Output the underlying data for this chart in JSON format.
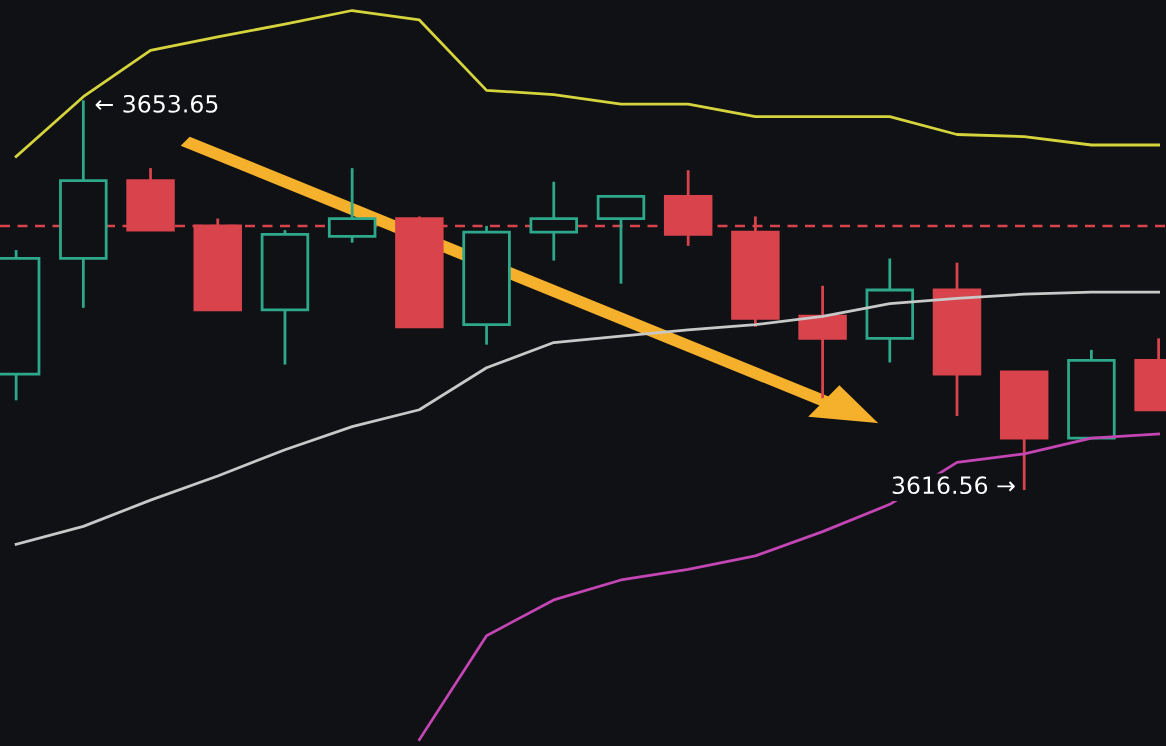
{
  "chart_data": {
    "type": "candlestick",
    "categories": [
      null,
      null,
      null,
      null,
      null,
      null,
      null,
      null,
      null,
      null,
      null,
      null,
      null,
      null,
      null,
      null,
      null,
      null
    ],
    "ohlc": [
      [
        3627.6,
        3639.4,
        3625.1,
        3638.6
      ],
      [
        3638.6,
        3653.65,
        3633.9,
        3646.0
      ],
      [
        3646.0,
        3647.2,
        3641.3,
        3641.3
      ],
      [
        3641.7,
        3642.4,
        3633.7,
        3633.7
      ],
      [
        3633.7,
        3641.3,
        3628.5,
        3640.9
      ],
      [
        3640.7,
        3647.2,
        3640.1,
        3642.4
      ],
      [
        3642.4,
        3642.6,
        3632.1,
        3632.1
      ],
      [
        3632.3,
        3641.7,
        3630.4,
        3641.1
      ],
      [
        3641.1,
        3645.9,
        3638.4,
        3642.4
      ],
      [
        3642.4,
        3644.5,
        3636.2,
        3644.5
      ],
      [
        3644.5,
        3647.0,
        3639.8,
        3640.9
      ],
      [
        3641.1,
        3642.6,
        3632.1,
        3632.9
      ],
      [
        3633.1,
        3636.0,
        3625.3,
        3631.0
      ],
      [
        3631.0,
        3638.6,
        3628.7,
        3635.6
      ],
      [
        3635.6,
        3638.2,
        3623.6,
        3627.6
      ],
      [
        3627.8,
        3627.8,
        3616.56,
        3621.5
      ],
      [
        3621.5,
        3629.9,
        3621.5,
        3628.9
      ],
      [
        3628.9,
        3631.0,
        3624.2,
        3624.2
      ]
    ],
    "colors": [
      "#2ea88a",
      "#2ea88a",
      "#d9434b",
      "#d9434b",
      "#2ea88a",
      "#2ea88a",
      "#d9434b",
      "#2ea88a",
      "#2ea88a",
      "#2ea88a",
      "#d9434b",
      "#d9434b",
      "#d9434b",
      "#2ea88a",
      "#d9434b",
      "#d9434b",
      "#2ea88a",
      "#d9434b"
    ],
    "series": [
      {
        "type": "line",
        "color": "#d6d43c",
        "values": [
          3648.3,
          3654.0,
          3658.4,
          3659.7,
          3660.9,
          3662.2,
          3661.3,
          3654.6,
          3654.2,
          3653.3,
          3653.3,
          3652.1,
          3652.1,
          3652.1,
          3650.4,
          3650.2,
          3649.4,
          3649.4
        ]
      },
      {
        "type": "line",
        "color": "#c8c8c8",
        "values": [
          3611.4,
          3613.1,
          3615.6,
          3617.9,
          3620.4,
          3622.6,
          3624.2,
          3628.2,
          3630.6,
          3631.2,
          3631.8,
          3632.3,
          3633.1,
          3634.3,
          3634.8,
          3635.2,
          3635.4,
          3635.4
        ]
      },
      {
        "type": "line",
        "color": "#c445b4",
        "values": [
          null,
          null,
          null,
          null,
          null,
          null,
          3592.8,
          3602.7,
          3606.1,
          3608.0,
          3609.0,
          3610.3,
          3612.6,
          3615.2,
          3619.2,
          3620.0,
          3621.5,
          3621.9
        ]
      }
    ],
    "ylim": [
      3592.2,
      3663.2
    ],
    "ref_lines": [
      {
        "axis": "y",
        "value": 3641.7,
        "color": "#d9434b",
        "line_style": "dashed"
      }
    ],
    "annotations": [
      "← 3653.65",
      "3616.56 →"
    ],
    "line_style": "solid"
  }
}
